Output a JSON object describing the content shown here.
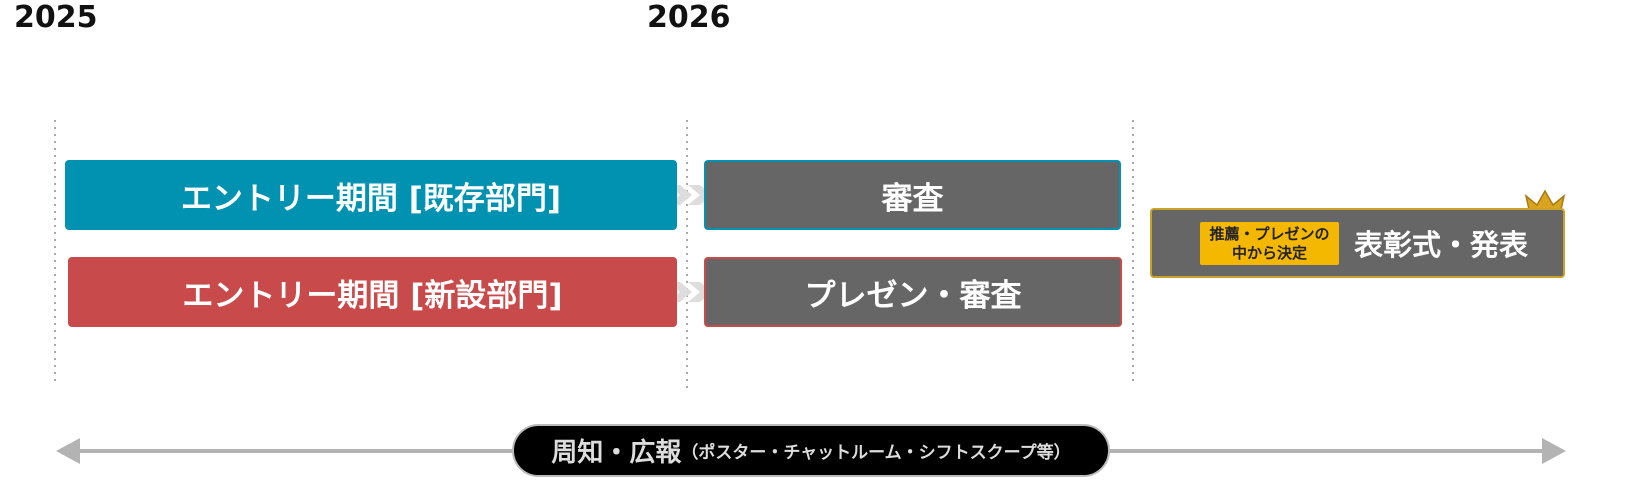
{
  "years": [
    "2025",
    "2026"
  ],
  "phases": [
    {
      "label": "エントリー期間 [既存部門]"
    },
    {
      "label": "エントリー期間 [新設部門]"
    },
    {
      "label": "審査"
    },
    {
      "label": "プレゼン・審査"
    }
  ],
  "award": {
    "badge_lines": [
      "推薦・プレゼンの",
      "中から決定"
    ],
    "label": "表彰式・発表"
  },
  "promotion": {
    "label": "周知・広報",
    "note": "（ポスター・チャットルーム・シフトスクープ等）"
  }
}
